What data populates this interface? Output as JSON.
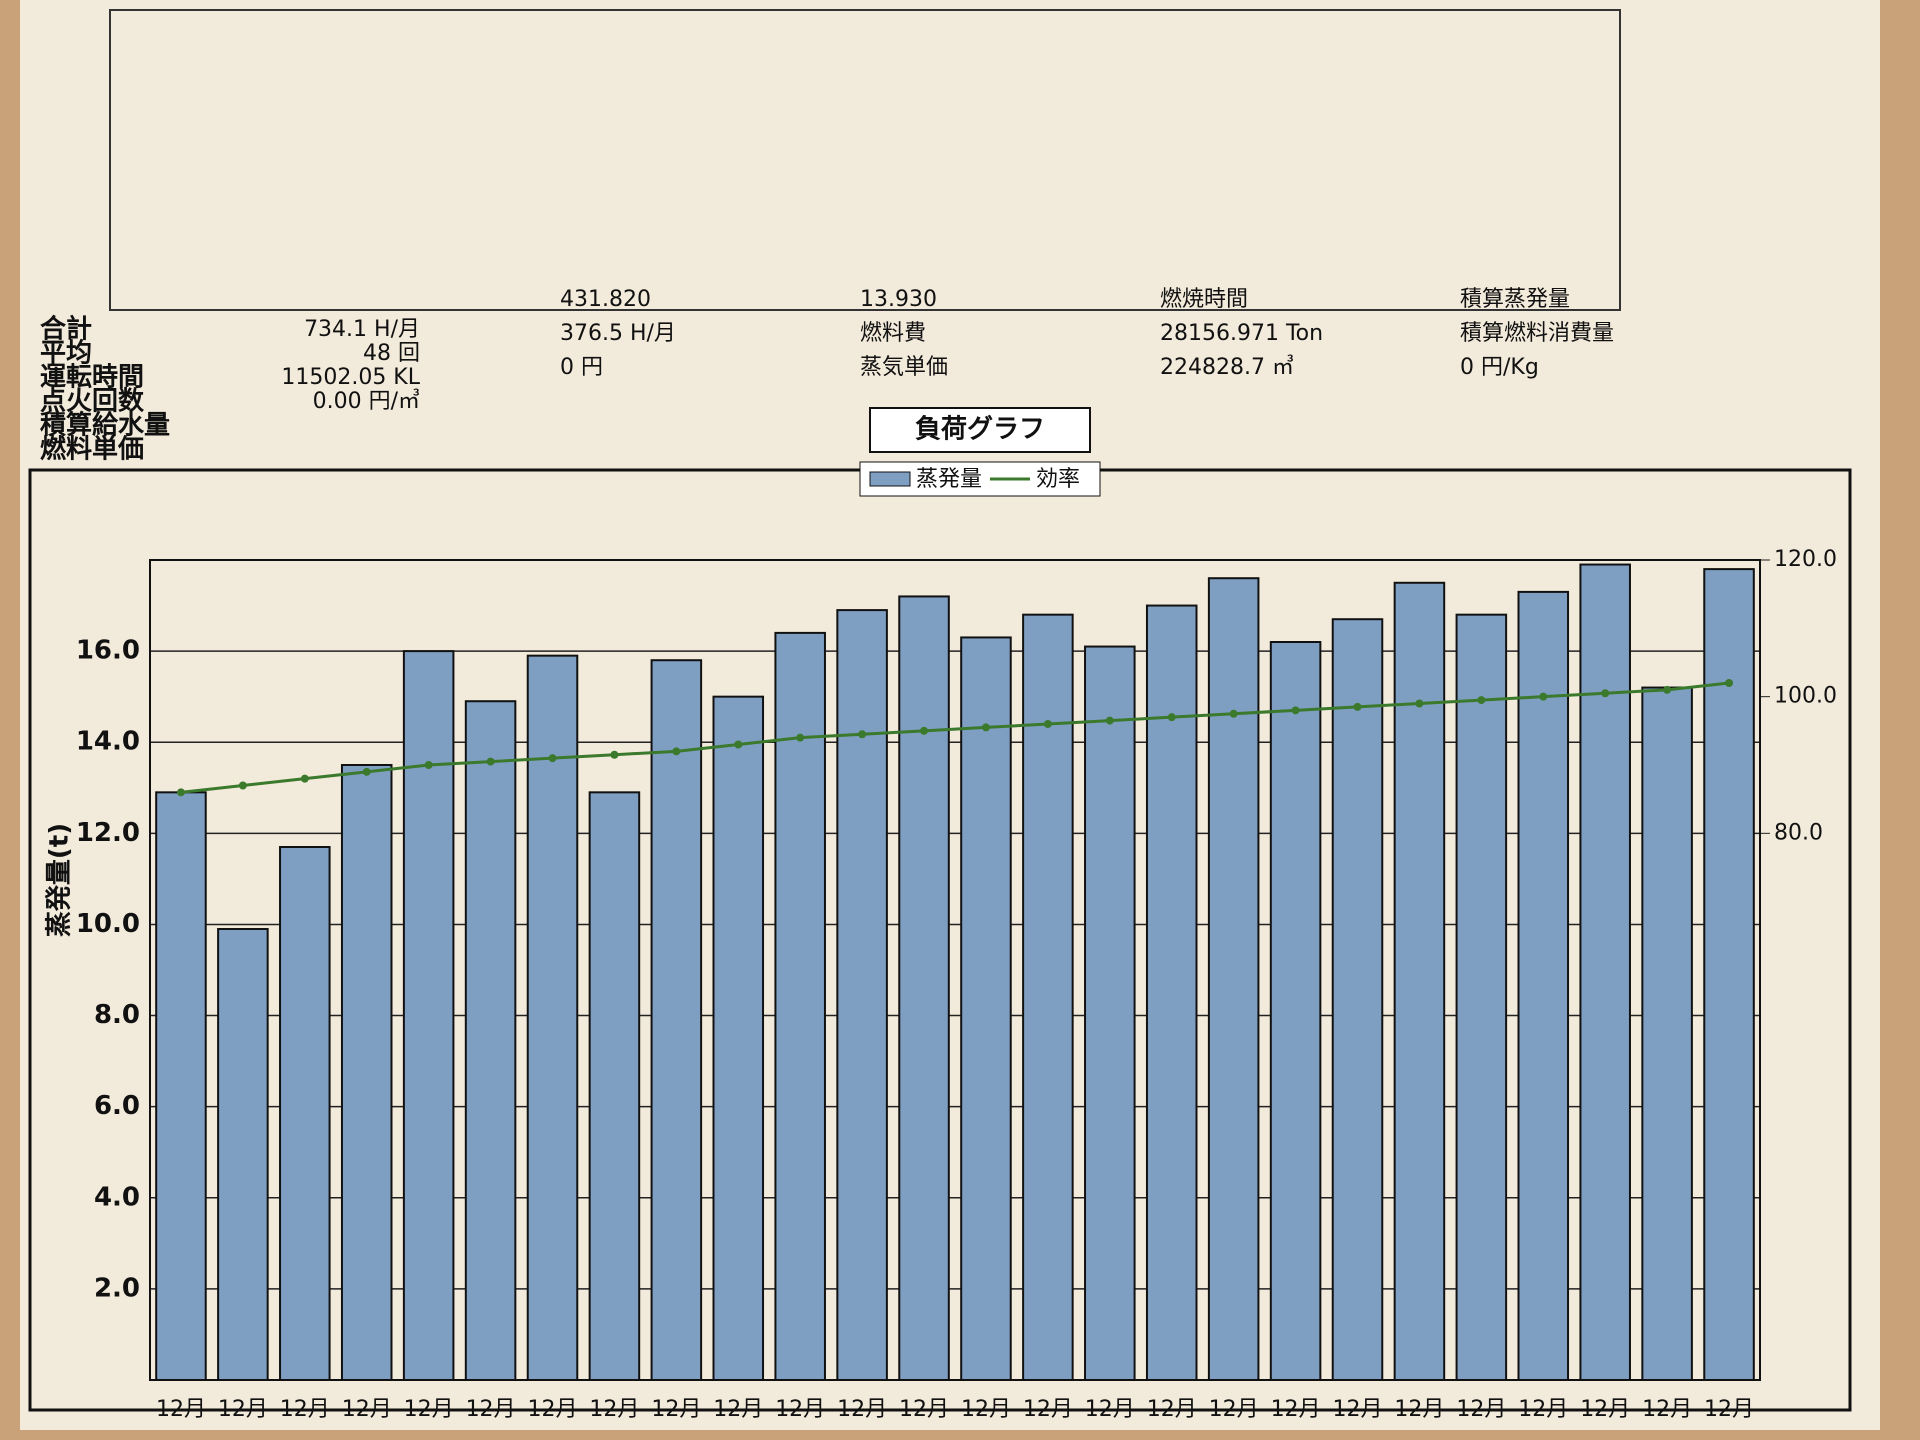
{
  "summary": {
    "labels": [
      "合計",
      "平均",
      "運転時間",
      "点火回数",
      "積算給水量",
      "燃料単価"
    ],
    "values": [
      "734.1 H/月",
      "48 回",
      "11502.05 KL",
      "0.00 円/㎥"
    ],
    "notes": [
      "431.820",
      "13.930",
      "燃焼時間",
      "積算蒸発量",
      "376.5 H/月",
      "燃料費",
      "28156.971 Ton",
      "積算燃料消費量",
      "0 円",
      "蒸気単価",
      "224828.7 ㎥",
      "0 円/Kg"
    ]
  },
  "chart_data": {
    "type": "bar",
    "title": "負荷グラフ",
    "y_label": "蒸発量(t)",
    "categories": [
      "12月",
      "12月",
      "12月",
      "12月",
      "12月",
      "12月",
      "12月",
      "12月",
      "12月",
      "12月",
      "12月",
      "12月",
      "12月",
      "12月",
      "12月",
      "12月",
      "12月",
      "12月",
      "12月",
      "12月",
      "12月",
      "12月",
      "12月",
      "12月",
      "12月",
      "12月"
    ],
    "series": [
      {
        "name": "蒸発量",
        "type": "bar",
        "color": "#7f9fc2",
        "values": [
          12.9,
          9.9,
          11.7,
          13.5,
          16.0,
          14.9,
          15.9,
          12.9,
          15.8,
          15.0,
          16.4,
          16.9,
          17.2,
          16.3,
          16.8,
          16.1,
          17.0,
          17.6,
          16.2,
          16.7,
          17.5,
          16.8,
          17.3,
          17.9,
          15.2,
          17.8
        ]
      },
      {
        "name": "効率",
        "type": "line",
        "axis": "y2",
        "color": "#3b7a2c",
        "values": [
          86,
          87,
          88,
          89,
          90,
          90.5,
          91,
          91.5,
          92,
          93,
          94,
          94.5,
          95,
          95.5,
          96,
          96.5,
          97,
          97.5,
          98,
          98.5,
          99,
          99.5,
          100,
          100.5,
          101,
          102
        ]
      }
    ],
    "ylim": [
      0,
      18
    ],
    "yticks": [
      {
        "value": 2,
        "label": "2.0"
      },
      {
        "value": 4,
        "label": "4.0"
      },
      {
        "value": 6,
        "label": "6.0"
      },
      {
        "value": 8,
        "label": "8.0"
      },
      {
        "value": 10,
        "label": "10.0"
      },
      {
        "value": 12,
        "label": "12.0"
      },
      {
        "value": 14,
        "label": "14.0"
      },
      {
        "value": 16,
        "label": "16.0"
      }
    ],
    "y2lim": [
      0,
      120
    ],
    "y2ticks": [
      {
        "value": 80,
        "label": "80.0"
      },
      {
        "value": 100,
        "label": "100.0"
      },
      {
        "value": 120,
        "label": "120.0"
      }
    ],
    "grid": true
  }
}
